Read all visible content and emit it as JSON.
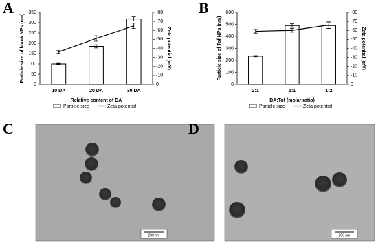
{
  "chart_data": [
    {
      "type": "bar",
      "panel": "A",
      "categories": [
        "10 DA",
        "20 DA",
        "30 DA"
      ],
      "x_label": "Relative content of DA",
      "y_label": "Particle size of blank NPs (nm)",
      "y2_label": "Zeta potential (mV)",
      "ylim": [
        0,
        350
      ],
      "yticks": [
        0,
        50,
        100,
        150,
        200,
        250,
        300,
        350
      ],
      "y2lim": [
        0,
        -80
      ],
      "y2ticks": [
        0,
        -10,
        -20,
        -30,
        -40,
        -50,
        -60,
        -70,
        -80
      ],
      "series": [
        {
          "name": "Particle size",
          "type": "bar",
          "color": "#ffffff",
          "values": [
            100,
            185,
            318
          ],
          "errors": [
            3,
            8,
            10
          ]
        },
        {
          "name": "Zeta potential",
          "type": "line",
          "axis": "y2",
          "color": "#000000",
          "values": [
            -36,
            -51,
            -65
          ],
          "errors": [
            1.5,
            3,
            3
          ]
        }
      ]
    },
    {
      "type": "bar",
      "panel": "B",
      "categories": [
        "2:1",
        "1:1",
        "1:2"
      ],
      "x_label": "DA:Tof (molar ratio)",
      "y_label": "Particle size of Tof NPs (nm)",
      "y2_label": "Zeta potential (mV)",
      "ylim": [
        0,
        600
      ],
      "yticks": [
        0,
        100,
        200,
        300,
        400,
        500,
        600
      ],
      "y2lim": [
        0,
        -80
      ],
      "y2ticks": [
        0,
        -10,
        -20,
        -30,
        -40,
        -50,
        -60,
        -70,
        -80
      ],
      "series": [
        {
          "name": "Particle size",
          "type": "bar",
          "color": "#ffffff",
          "values": [
            235,
            490,
            490
          ],
          "errors": [
            5,
            15,
            25
          ]
        },
        {
          "name": "Zeta potential",
          "type": "line",
          "axis": "y2",
          "color": "#000000",
          "values": [
            -59,
            -60,
            -66
          ],
          "errors": [
            2,
            2,
            4
          ]
        }
      ]
    }
  ],
  "images": [
    {
      "panel": "C",
      "scale_bar": "200 nm"
    },
    {
      "panel": "D",
      "scale_bar": "200 nm"
    }
  ]
}
